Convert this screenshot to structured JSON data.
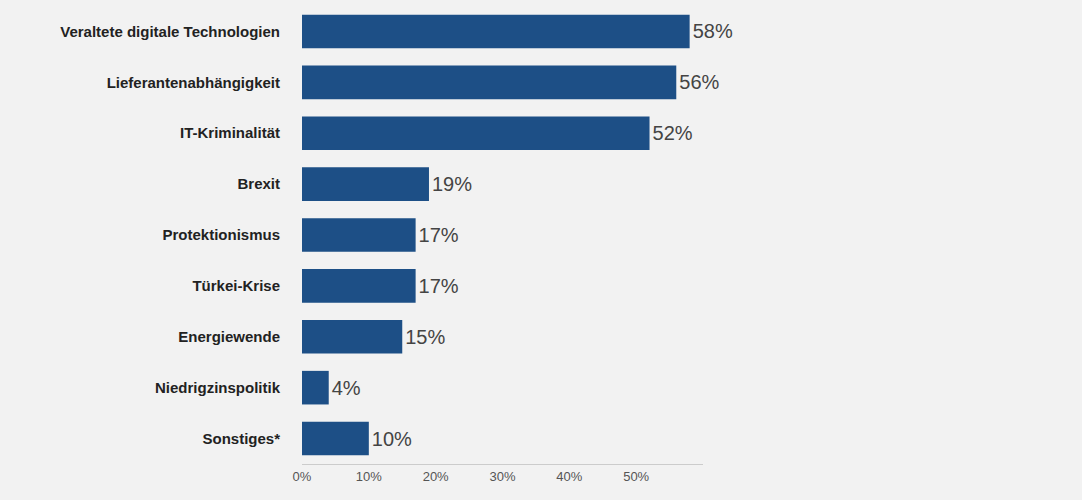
{
  "chart_data": {
    "type": "bar",
    "orientation": "horizontal",
    "categories": [
      "Veraltete digitale Technologien",
      "Lieferantenabhängigkeit",
      "IT-Kriminalität",
      "Brexit",
      "Protektionismus",
      "Türkei-Krise",
      "Energiewende",
      "Niedrigzinspolitik",
      "Sonstiges*"
    ],
    "values": [
      58,
      56,
      52,
      19,
      17,
      17,
      15,
      4,
      10
    ],
    "value_labels": [
      "58%",
      "56%",
      "52%",
      "19%",
      "17%",
      "17%",
      "15%",
      "4%",
      "10%"
    ],
    "data_labels": true,
    "color": "#1d4f86",
    "xlim": [
      0,
      60
    ],
    "xticks": [
      {
        "value": 0,
        "label": "0%"
      },
      {
        "value": 10,
        "label": "10%"
      },
      {
        "value": 20,
        "label": "20%"
      },
      {
        "value": 30,
        "label": "30%"
      },
      {
        "value": 40,
        "label": "40%"
      },
      {
        "value": 50,
        "label": "50%"
      }
    ],
    "grid": false
  }
}
